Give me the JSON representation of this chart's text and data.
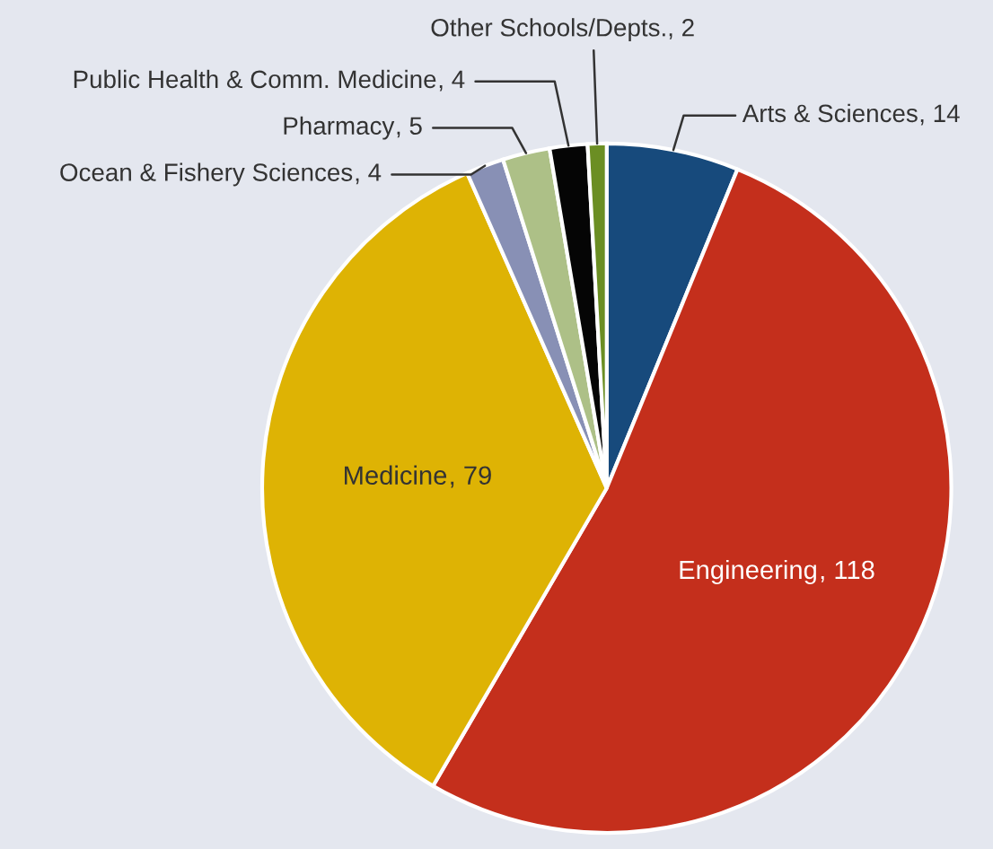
{
  "chart_data": {
    "type": "pie",
    "categories": [
      "Arts & Sciences",
      "Engineering",
      "Medicine",
      "Ocean & Fishery Sciences",
      "Pharmacy",
      "Public Health & Comm. Medicine",
      "Other Schools/Depts."
    ],
    "values": [
      14,
      118,
      79,
      4,
      5,
      4,
      2
    ],
    "colors": [
      "#174a7c",
      "#c42f1c",
      "#deb304",
      "#8890b5",
      "#adc087",
      "#050505",
      "#6b8e23"
    ],
    "value_labels": [
      ", 14",
      ", 118",
      ", 79",
      ", 4",
      ", 5",
      ", 4",
      ", 2"
    ]
  }
}
